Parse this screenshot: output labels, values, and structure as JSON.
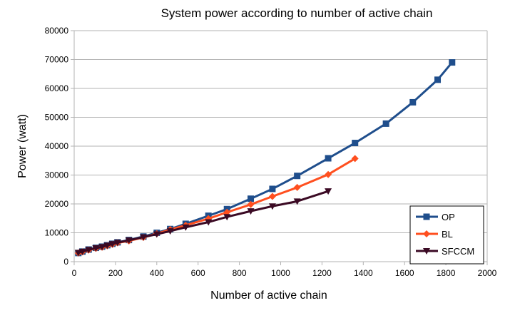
{
  "chart_data": {
    "type": "line",
    "title": "System power according to number of active chain",
    "xlabel": "Number of active chain",
    "ylabel": "Power (watt)",
    "xlim": [
      0,
      2000
    ],
    "ylim": [
      0,
      80000
    ],
    "x_ticks": [
      0,
      200,
      400,
      600,
      800,
      1000,
      1200,
      1400,
      1600,
      1800,
      2000
    ],
    "y_ticks": [
      0,
      10000,
      20000,
      30000,
      40000,
      50000,
      60000,
      70000,
      80000
    ],
    "x_tick_labels": [
      "0",
      "200",
      "400",
      "600",
      "800",
      "1000",
      "1200",
      "1400",
      "1600",
      "1800",
      "2000"
    ],
    "y_tick_labels": [
      "0",
      "10000",
      "20000",
      "30000",
      "40000",
      "50000",
      "60000",
      "70000",
      "80000"
    ],
    "grid": "horizontal",
    "legend_position": "bottom-right",
    "series": [
      {
        "name": "OP",
        "color": "#1f4e8c",
        "marker": "square",
        "x": [
          20,
          40,
          70,
          105,
          135,
          160,
          185,
          210,
          265,
          335,
          400,
          465,
          540,
          650,
          740,
          855,
          960,
          1080,
          1230,
          1360,
          1510,
          1640,
          1760,
          1830
        ],
        "y": [
          3000,
          3500,
          4200,
          4800,
          5200,
          5700,
          6200,
          6700,
          7500,
          8700,
          10000,
          11300,
          13100,
          15900,
          18200,
          21800,
          25200,
          29700,
          35800,
          41100,
          47800,
          55200,
          63000,
          69000
        ]
      },
      {
        "name": "BL",
        "color": "#ff4f1f",
        "marker": "diamond",
        "x": [
          20,
          40,
          70,
          105,
          135,
          160,
          185,
          210,
          265,
          335,
          400,
          465,
          540,
          650,
          740,
          855,
          960,
          1080,
          1230,
          1360
        ],
        "y": [
          3000,
          3400,
          4000,
          4600,
          5000,
          5500,
          6000,
          6500,
          7200,
          8400,
          9700,
          11100,
          12600,
          14900,
          17100,
          19800,
          22600,
          25700,
          30200,
          35700
        ]
      },
      {
        "name": "SFCCM",
        "color": "#3b0a24",
        "marker": "triangle-down",
        "x": [
          20,
          40,
          70,
          105,
          135,
          160,
          185,
          210,
          265,
          335,
          400,
          465,
          540,
          650,
          740,
          855,
          960,
          1080,
          1230
        ],
        "y": [
          3100,
          3500,
          4100,
          4700,
          5100,
          5600,
          6100,
          6600,
          7400,
          8500,
          9500,
          10600,
          11900,
          13700,
          15500,
          17500,
          19200,
          20900,
          24400
        ]
      }
    ]
  }
}
